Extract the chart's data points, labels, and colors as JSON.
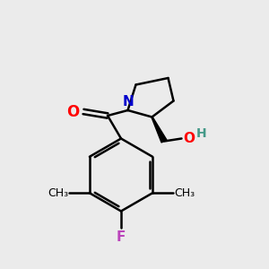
{
  "background_color": "#ebebeb",
  "bond_color": "#000000",
  "bond_width": 1.8,
  "label_fontsize": 11,
  "atom_colors": {
    "O": "#ff0000",
    "N": "#0000cc",
    "F": "#bb44bb",
    "H": "#449988",
    "C": "#000000"
  }
}
